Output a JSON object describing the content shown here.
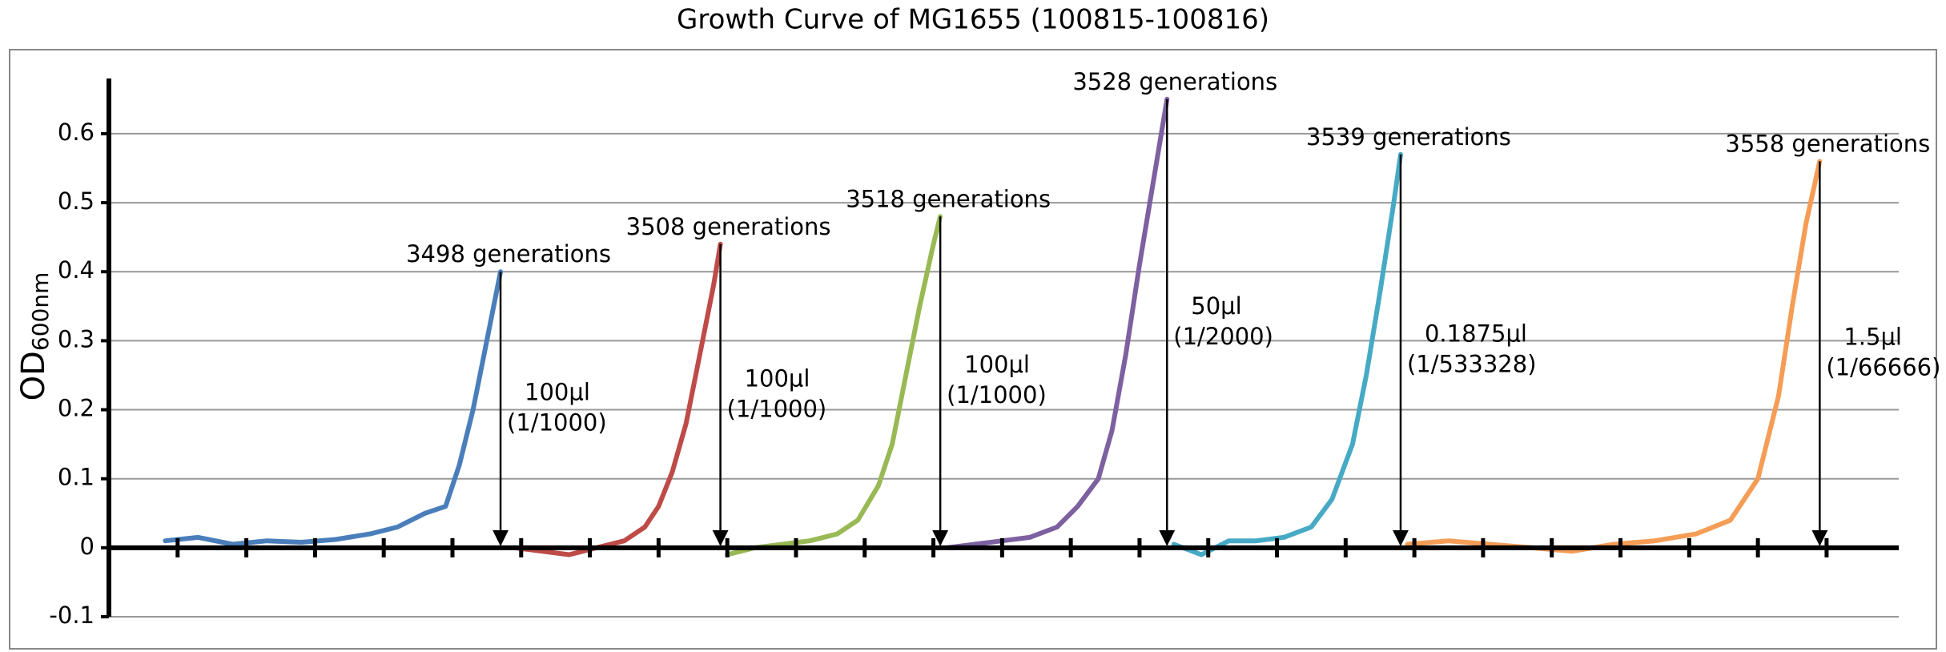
{
  "chart_data": {
    "type": "line",
    "title": "Growth Curve of MG1655 (100815-100816)",
    "ylabel": "OD",
    "ylabel_sub": "600nm",
    "xlim": [
      -1,
      25.05
    ],
    "xticks": [
      0,
      1,
      2,
      3,
      4,
      5,
      6,
      7,
      8,
      9,
      10,
      11,
      12,
      13,
      14,
      15,
      16,
      17,
      18,
      19,
      20,
      21,
      22,
      23,
      24
    ],
    "ylim": [
      -0.1,
      0.68
    ],
    "yticks": [
      -0.1,
      0,
      0.1,
      0.2,
      0.3,
      0.4,
      0.5,
      0.6
    ],
    "grid": true,
    "series": [
      {
        "color": "#4a7ebb",
        "annotation": "3498 generations",
        "dilution": [
          "100μl",
          "(1/1000)"
        ],
        "x": [
          -0.18,
          0.3,
          0.8,
          1.3,
          1.8,
          2.3,
          2.8,
          3.2,
          3.6,
          3.9,
          4.1,
          4.3,
          4.5,
          4.7
        ],
        "values": [
          0.01,
          0.015,
          0.005,
          0.01,
          0.008,
          0.012,
          0.02,
          0.03,
          0.05,
          0.06,
          0.12,
          0.2,
          0.3,
          0.4
        ]
      },
      {
        "color": "#be4b48",
        "annotation": "3508 generations",
        "dilution": [
          "100μl",
          "(1/1000)"
        ],
        "x": [
          4.9,
          5.3,
          5.7,
          6.1,
          6.5,
          6.8,
          7.0,
          7.2,
          7.4,
          7.6,
          7.8,
          7.9
        ],
        "values": [
          0.0,
          -0.005,
          -0.01,
          0.0,
          0.01,
          0.03,
          0.06,
          0.11,
          0.18,
          0.28,
          0.38,
          0.44
        ]
      },
      {
        "color": "#98b954",
        "annotation": "3518 generations",
        "dilution": [
          "100μl",
          "(1/1000)"
        ],
        "x": [
          8.0,
          8.4,
          8.8,
          9.2,
          9.6,
          9.9,
          10.2,
          10.4,
          10.6,
          10.8,
          11.0,
          11.1
        ],
        "values": [
          -0.01,
          0.0,
          0.005,
          0.01,
          0.02,
          0.04,
          0.09,
          0.15,
          0.25,
          0.35,
          0.44,
          0.48
        ]
      },
      {
        "color": "#7d60a0",
        "annotation": "3528 generations",
        "dilution": [
          "50μl",
          "(1/2000)"
        ],
        "x": [
          11.2,
          11.6,
          12.0,
          12.4,
          12.8,
          13.1,
          13.4,
          13.6,
          13.8,
          14.0,
          14.2,
          14.4
        ],
        "values": [
          0.0,
          0.005,
          0.01,
          0.015,
          0.03,
          0.06,
          0.1,
          0.17,
          0.28,
          0.41,
          0.53,
          0.65
        ]
      },
      {
        "color": "#46aac5",
        "annotation": "3539 generations",
        "dilution": [
          "0.1875μl",
          "(1/533328)"
        ],
        "x": [
          14.5,
          14.9,
          15.3,
          15.7,
          16.1,
          16.5,
          16.8,
          17.1,
          17.3,
          17.5,
          17.7,
          17.8
        ],
        "values": [
          0.005,
          -0.01,
          0.01,
          0.01,
          0.015,
          0.03,
          0.07,
          0.15,
          0.25,
          0.37,
          0.5,
          0.57
        ]
      },
      {
        "color": "#f59d56",
        "annotation": "3558 generations",
        "dilution": [
          "1.5μl",
          "(1/66666)"
        ],
        "x": [
          17.9,
          18.5,
          19.1,
          19.7,
          20.3,
          20.9,
          21.5,
          22.1,
          22.6,
          23.0,
          23.3,
          23.5,
          23.7,
          23.9
        ],
        "values": [
          0.005,
          0.01,
          0.005,
          0.0,
          -0.005,
          0.005,
          0.01,
          0.02,
          0.04,
          0.1,
          0.22,
          0.35,
          0.47,
          0.56
        ]
      }
    ]
  }
}
